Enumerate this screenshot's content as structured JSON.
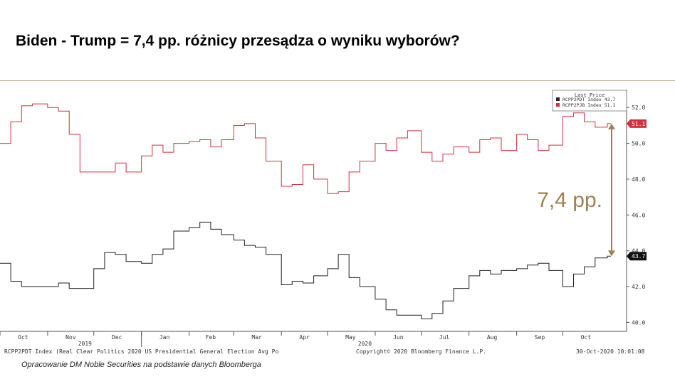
{
  "title": "Biden - Trump = 7,4 pp. różnicy przesądza o wyniku wyborów?",
  "footer": {
    "left": "RCPP2PDT Index (Real Clear Politics 2020 US Presidential General Election Avg Po",
    "center": "Copyright© 2020 Bloomberg Finance L.P.",
    "right": "30-Oct-2020 10:01:08"
  },
  "credit": "Opracowanie DM Noble Securities na podstawie danych Bloomberga",
  "colors": {
    "biden": "#d2303c",
    "trump": "#222222",
    "annotation": "#9f8150"
  },
  "chart_data": {
    "type": "line",
    "legend": {
      "title": "Last Price",
      "entries": [
        "RCPP2PDT Index 43.7",
        "RCPP2PJB Index 51.1"
      ],
      "placement": "top-right"
    },
    "ylim": [
      39.5,
      53.0
    ],
    "yticks": [
      "40.0",
      "42.0",
      "44.0",
      "46.0",
      "48.0",
      "50.0",
      "52.0"
    ],
    "xticks": [
      "Oct",
      "Nov",
      "Dec",
      "Jan",
      "Feb",
      "Mar",
      "Apr",
      "May",
      "Jun",
      "Jul",
      "Aug",
      "Sep",
      "Oct"
    ],
    "year_labels": [
      "2019",
      "2020"
    ],
    "last_price_labels": {
      "biden": "51.1",
      "trump": "43.7"
    },
    "annotation": "7,4 pp.",
    "series": [
      {
        "name": "RCPP2PJB Index",
        "color": "#d2303c",
        "x": [
          "2019-10-01",
          "2019-10-08",
          "2019-10-15",
          "2019-10-22",
          "2019-11-01",
          "2019-11-08",
          "2019-11-15",
          "2019-11-22",
          "2019-12-01",
          "2019-12-08",
          "2019-12-15",
          "2019-12-22",
          "2020-01-01",
          "2020-01-08",
          "2020-01-15",
          "2020-01-22",
          "2020-02-01",
          "2020-02-08",
          "2020-02-15",
          "2020-02-22",
          "2020-03-01",
          "2020-03-08",
          "2020-03-15",
          "2020-03-22",
          "2020-04-01",
          "2020-04-08",
          "2020-04-15",
          "2020-04-22",
          "2020-05-01",
          "2020-05-08",
          "2020-05-15",
          "2020-05-22",
          "2020-06-01",
          "2020-06-08",
          "2020-06-15",
          "2020-06-22",
          "2020-07-01",
          "2020-07-08",
          "2020-07-15",
          "2020-07-22",
          "2020-08-01",
          "2020-08-08",
          "2020-08-15",
          "2020-08-22",
          "2020-09-01",
          "2020-09-08",
          "2020-09-15",
          "2020-09-22",
          "2020-10-01",
          "2020-10-08",
          "2020-10-15",
          "2020-10-22",
          "2020-10-30"
        ],
        "values": [
          50.0,
          51.2,
          52.1,
          52.2,
          52.0,
          51.8,
          50.5,
          48.4,
          48.4,
          48.4,
          48.9,
          48.4,
          49.3,
          49.9,
          49.5,
          50.0,
          50.1,
          50.2,
          49.8,
          50.2,
          51.0,
          51.1,
          50.3,
          49.0,
          47.6,
          47.7,
          48.8,
          48.0,
          47.2,
          47.3,
          48.4,
          49.0,
          50.0,
          49.6,
          50.3,
          50.7,
          49.5,
          49.0,
          49.4,
          49.8,
          49.5,
          50.2,
          50.3,
          49.6,
          50.5,
          50.2,
          49.6,
          49.9,
          51.5,
          51.7,
          51.2,
          50.9,
          51.1
        ]
      },
      {
        "name": "RCPP2PDT Index",
        "color": "#222222",
        "x": [
          "2019-10-01",
          "2019-10-08",
          "2019-10-15",
          "2019-10-22",
          "2019-11-01",
          "2019-11-08",
          "2019-11-15",
          "2019-11-22",
          "2019-12-01",
          "2019-12-08",
          "2019-12-15",
          "2019-12-22",
          "2020-01-01",
          "2020-01-08",
          "2020-01-15",
          "2020-01-22",
          "2020-02-01",
          "2020-02-08",
          "2020-02-15",
          "2020-02-22",
          "2020-03-01",
          "2020-03-08",
          "2020-03-15",
          "2020-03-22",
          "2020-04-01",
          "2020-04-08",
          "2020-04-15",
          "2020-04-22",
          "2020-05-01",
          "2020-05-08",
          "2020-05-15",
          "2020-05-22",
          "2020-06-01",
          "2020-06-08",
          "2020-06-15",
          "2020-06-22",
          "2020-07-01",
          "2020-07-08",
          "2020-07-15",
          "2020-07-22",
          "2020-08-01",
          "2020-08-08",
          "2020-08-15",
          "2020-08-22",
          "2020-09-01",
          "2020-09-08",
          "2020-09-15",
          "2020-09-22",
          "2020-10-01",
          "2020-10-08",
          "2020-10-15",
          "2020-10-22",
          "2020-10-30"
        ],
        "values": [
          43.3,
          42.3,
          42.0,
          42.0,
          42.0,
          42.2,
          41.9,
          41.9,
          43.0,
          43.9,
          43.8,
          43.4,
          43.3,
          43.8,
          44.1,
          45.1,
          45.3,
          45.6,
          45.2,
          44.9,
          44.6,
          44.3,
          44.2,
          43.8,
          42.1,
          42.3,
          42.2,
          42.6,
          43.0,
          43.8,
          42.5,
          42.0,
          41.3,
          40.7,
          40.4,
          40.4,
          40.2,
          40.5,
          41.2,
          41.9,
          42.6,
          42.9,
          42.7,
          42.9,
          43.0,
          43.2,
          43.3,
          42.9,
          42.0,
          42.7,
          43.1,
          43.6,
          43.7
        ]
      }
    ]
  }
}
